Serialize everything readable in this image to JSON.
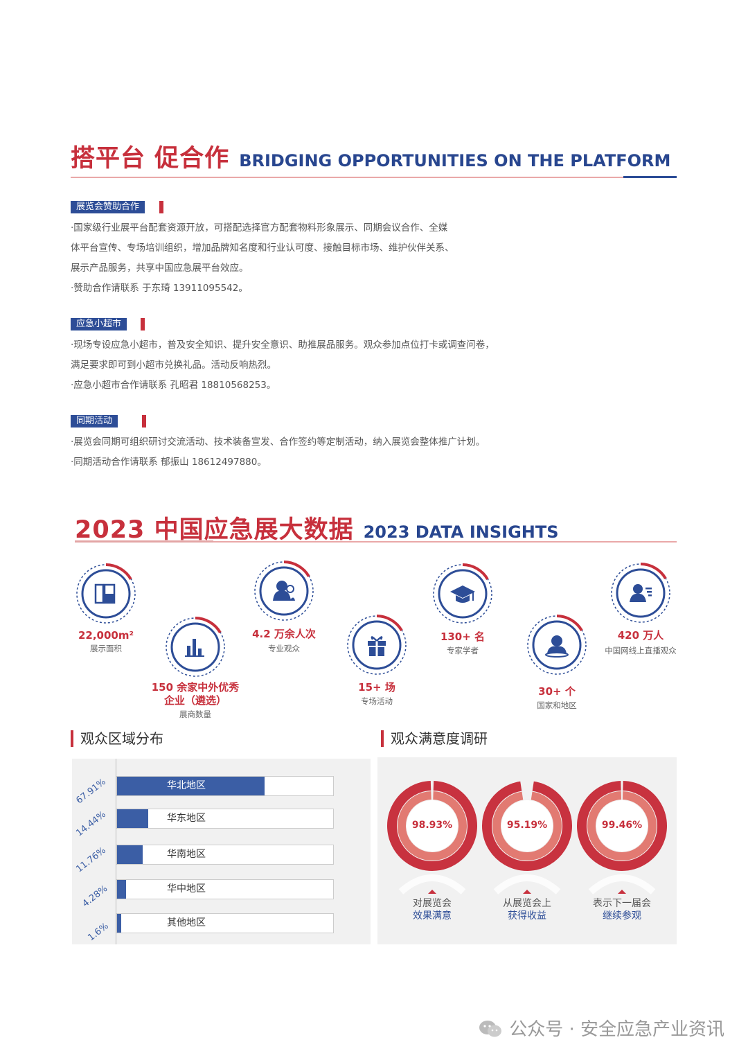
{
  "section1": {
    "title_cn": "搭平台 促合作",
    "title_en": "BRIDGING OPPORTUNITIES ON THE PLATFORM",
    "blocks": [
      {
        "label": "展览会赞助合作",
        "lines": [
          "·国家级行业展平台配套资源开放，可搭配选择官方配套物料形象展示、同期会议合作、全媒",
          " 体平台宣传、专场培训组织，增加品牌知名度和行业认可度、接触目标市场、维护伙伴关系、",
          " 展示产品服务，共享中国应急展平台效应。",
          "·赞助合作请联系 于东琦 13911095542。"
        ]
      },
      {
        "label": "应急小超市",
        "lines": [
          "·现场专设应急小超市，普及安全知识、提升安全意识、助推展品服务。观众参加点位打卡或调查问卷，",
          " 满足要求即可到小超市兑换礼品。活动反响热烈。",
          "·应急小超市合作请联系 孔昭君 18810568253。"
        ]
      },
      {
        "label": "同期活动",
        "lines": [
          "·展览会同期可组织研讨交流活动、技术装备宣发、合作签约等定制活动，纳入展览会整体推广计划。",
          "·同期活动合作请联系  郁振山 18612497880。"
        ]
      }
    ]
  },
  "section2": {
    "title_cn": "2023 中国应急展大数据",
    "title_en": "2023 DATA INSIGHTS"
  },
  "stats": [
    {
      "value": "22,000m²",
      "label": "展示面积",
      "icon": "floor-plan-icon"
    },
    {
      "value": "150 余家中外优秀",
      "value2": "企业（遴选）",
      "label": "展商数量",
      "icon": "bar-chart-icon"
    },
    {
      "value": "4.2 万余人次",
      "label": "专业观众",
      "icon": "people-icon"
    },
    {
      "value": "15+ 场",
      "label": "专场活动",
      "icon": "gift-icon"
    },
    {
      "value": "130+ 名",
      "label": "专家学者",
      "icon": "graduation-cap-icon"
    },
    {
      "value": "30+ 个",
      "label": "国家和地区",
      "icon": "global-person-icon"
    },
    {
      "value": "420 万人",
      "label": "中国网线上直播观众",
      "icon": "online-viewer-icon"
    }
  ],
  "region_chart_title": "观众区域分布",
  "satisfaction_chart_title": "观众满意度调研",
  "chart_data": [
    {
      "type": "bar",
      "categories": [
        "华北地区",
        "华东地区",
        "华南地区",
        "华中地区",
        "其他地区"
      ],
      "values": [
        67.91,
        14.44,
        11.76,
        4.28,
        1.6
      ],
      "value_labels": [
        "67.91%",
        "14.44%",
        "11.76%",
        "4.28%",
        "1.6%"
      ],
      "title": "观众区域分布",
      "ylim": [
        0,
        100
      ],
      "colors": {
        "bar": "#3b5ea5"
      }
    },
    {
      "type": "pie",
      "categories": [
        "对展览会效果满意",
        "从展览会上获得收益",
        "表示下一届会继续参观"
      ],
      "values": [
        98.93,
        95.19,
        99.46
      ],
      "value_labels": [
        "98.93%",
        "95.19%",
        "99.46%"
      ],
      "label_lines": [
        [
          "对展览会",
          "效果满意"
        ],
        [
          "从展览会上",
          "获得收益"
        ],
        [
          "表示下一届会",
          "继续参观"
        ]
      ],
      "title": "观众满意度调研",
      "colors": {
        "outer": "#c8323f",
        "inner": "#e27a72"
      }
    }
  ],
  "footer": "公众号 · 安全应急产业资讯",
  "colors": {
    "red": "#c7303c",
    "blue": "#2d4d97",
    "panel": "#f1f1f1"
  }
}
